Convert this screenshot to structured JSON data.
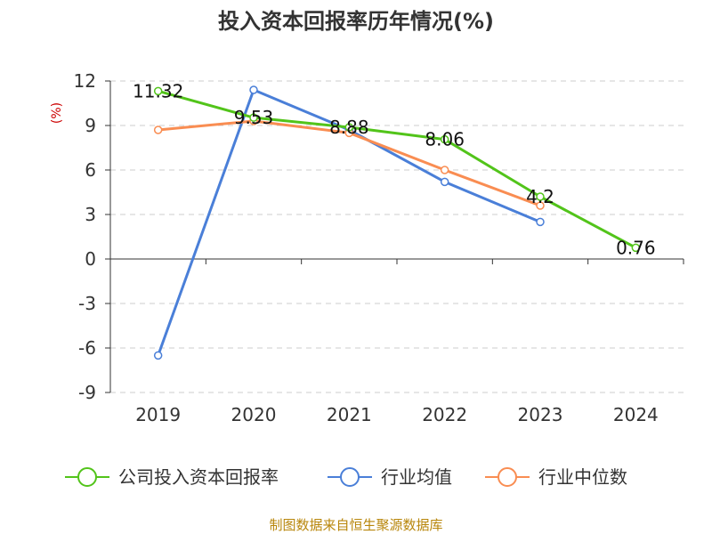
{
  "chart_data": {
    "type": "line",
    "title": "投入资本回报率历年情况(%)",
    "ylabel": "(%)",
    "categories": [
      "2019",
      "2020",
      "2021",
      "2022",
      "2023",
      "2024"
    ],
    "y_ticks": [
      "12",
      "9",
      "6",
      "3",
      "0",
      "-3",
      "-6",
      "-9"
    ],
    "ylim": [
      -9,
      12
    ],
    "grid": true,
    "legend_position": "bottom",
    "series": [
      {
        "name": "公司投入资本回报率",
        "color": "#52c41a",
        "values": [
          11.32,
          9.53,
          8.88,
          8.06,
          4.2,
          0.76
        ],
        "labels": [
          "11.32",
          "9.53",
          "8.88",
          "8.06",
          "4.2",
          "0.76"
        ]
      },
      {
        "name": "行业均值",
        "color": "#4a7fd8",
        "values": [
          -6.5,
          11.4,
          8.7,
          5.2,
          2.5,
          null
        ]
      },
      {
        "name": "行业中位数",
        "color": "#f98d52",
        "values": [
          8.7,
          9.3,
          8.5,
          6.0,
          3.6,
          null
        ]
      }
    ]
  },
  "source": "制图数据来自恒生聚源数据库"
}
